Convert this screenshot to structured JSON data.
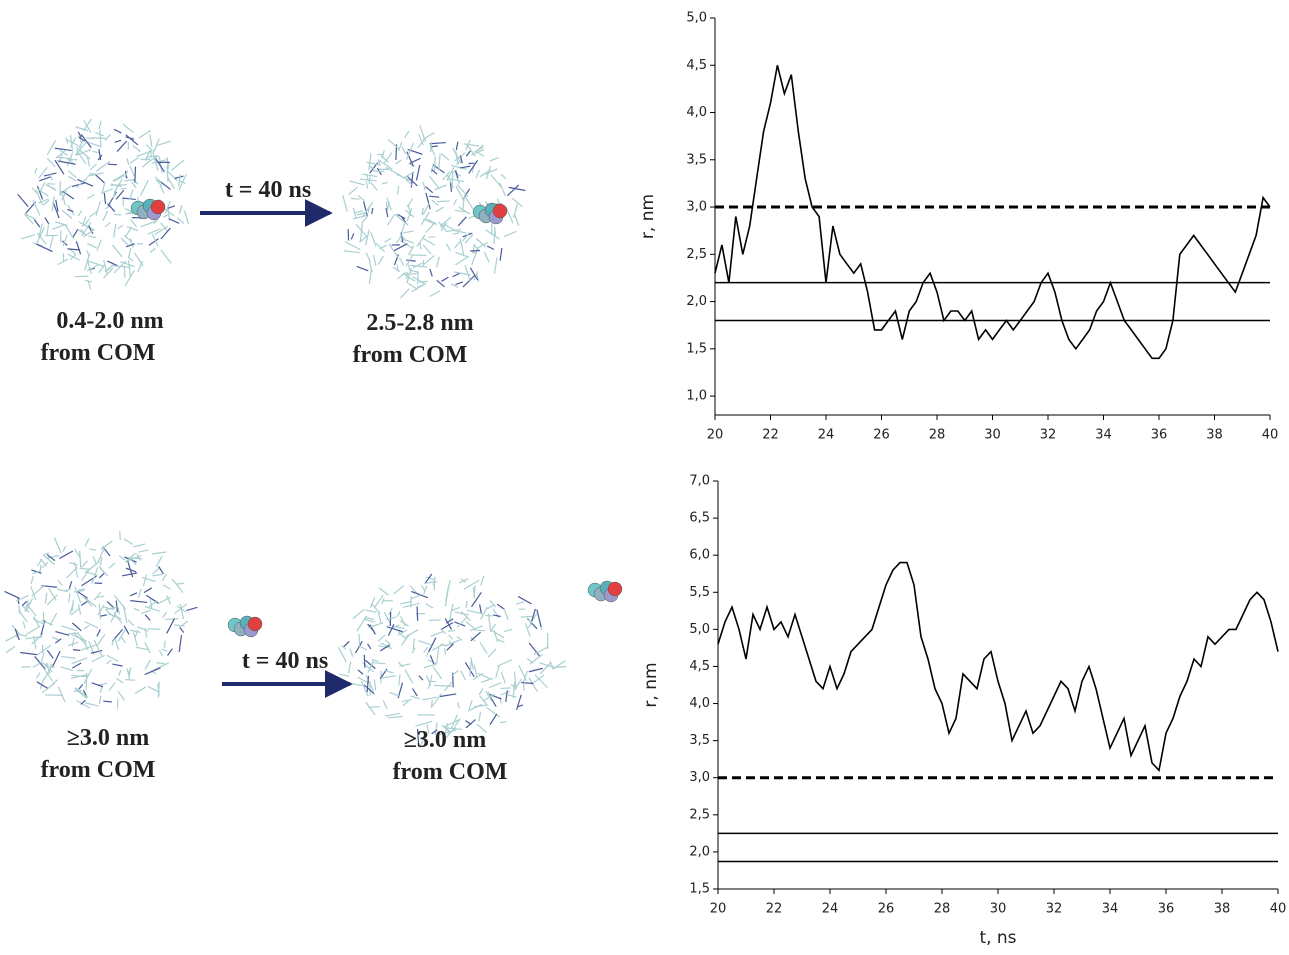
{
  "schemes": [
    {
      "arrow_label": "t = 40 ns",
      "start_label": [
        "0.4-2.0 nm",
        "from COM"
      ],
      "end_label": [
        "2.5-2.8 nm",
        "from COM"
      ]
    },
    {
      "arrow_label": "t = 40 ns",
      "start_label": [
        "≥3.0 nm",
        "from COM"
      ],
      "end_label": [
        "≥3.0 nm",
        "from COM"
      ]
    }
  ],
  "chart_data": [
    {
      "type": "line",
      "ylabel": "r, nm",
      "color": "#000000",
      "x": [
        20,
        20.25,
        20.5,
        20.75,
        21,
        21.25,
        21.5,
        21.75,
        22,
        22.25,
        22.5,
        22.75,
        23,
        23.25,
        23.5,
        23.75,
        24,
        24.25,
        24.5,
        24.75,
        25,
        25.25,
        25.5,
        25.75,
        26,
        26.25,
        26.5,
        26.75,
        27,
        27.25,
        27.5,
        27.75,
        28,
        28.25,
        28.5,
        28.75,
        29,
        29.25,
        29.5,
        29.75,
        30,
        30.25,
        30.5,
        30.75,
        31,
        31.25,
        31.5,
        31.75,
        32,
        32.25,
        32.5,
        32.75,
        33,
        33.25,
        33.5,
        33.75,
        34,
        34.25,
        34.5,
        34.75,
        35,
        35.25,
        35.5,
        35.75,
        36,
        36.25,
        36.5,
        36.75,
        37,
        37.25,
        37.5,
        37.75,
        38,
        38.25,
        38.5,
        38.75,
        39,
        39.25,
        39.5,
        39.75,
        40
      ],
      "values": [
        2.3,
        2.6,
        2.2,
        2.9,
        2.5,
        2.8,
        3.3,
        3.8,
        4.1,
        4.5,
        4.2,
        4.4,
        3.8,
        3.3,
        3.0,
        2.9,
        2.2,
        2.8,
        2.5,
        2.4,
        2.3,
        2.4,
        2.1,
        1.7,
        1.7,
        1.8,
        1.9,
        1.6,
        1.9,
        2.0,
        2.2,
        2.3,
        2.1,
        1.8,
        1.9,
        1.9,
        1.8,
        1.9,
        1.6,
        1.7,
        1.6,
        1.7,
        1.8,
        1.7,
        1.8,
        1.9,
        2.0,
        2.2,
        2.3,
        2.1,
        1.8,
        1.6,
        1.5,
        1.6,
        1.7,
        1.9,
        2.0,
        2.2,
        2.0,
        1.8,
        1.7,
        1.6,
        1.5,
        1.4,
        1.4,
        1.5,
        1.8,
        2.5,
        2.6,
        2.7,
        2.6,
        2.5,
        2.4,
        2.3,
        2.2,
        2.1,
        2.3,
        2.5,
        2.7,
        3.1,
        3.0
      ],
      "reference_lines": [
        {
          "value": 3.0,
          "style": "dashed"
        },
        {
          "value": 2.2,
          "style": "solid"
        },
        {
          "value": 1.8,
          "style": "solid"
        }
      ],
      "xlim": [
        20,
        40
      ],
      "ylim": [
        0.8,
        5.0
      ],
      "xticks": [
        20,
        22,
        24,
        26,
        28,
        30,
        32,
        34,
        36,
        38,
        40
      ],
      "yticks": [
        {
          "value": 1.0,
          "label": "1,0"
        },
        {
          "value": 1.5,
          "label": "1,5"
        },
        {
          "value": 2.0,
          "label": "2,0"
        },
        {
          "value": 2.5,
          "label": "2,5"
        },
        {
          "value": 3.0,
          "label": "3,0"
        },
        {
          "value": 3.5,
          "label": "3,5"
        },
        {
          "value": 4.0,
          "label": "4,0"
        },
        {
          "value": 4.5,
          "label": "4,5"
        },
        {
          "value": 5.0,
          "label": "5,0"
        }
      ]
    },
    {
      "type": "line",
      "ylabel": "r, nm",
      "xlabel": "t, ns",
      "color": "#000000",
      "x": [
        20,
        20.25,
        20.5,
        20.75,
        21,
        21.25,
        21.5,
        21.75,
        22,
        22.25,
        22.5,
        22.75,
        23,
        23.25,
        23.5,
        23.75,
        24,
        24.25,
        24.5,
        24.75,
        25,
        25.25,
        25.5,
        25.75,
        26,
        26.25,
        26.5,
        26.75,
        27,
        27.25,
        27.5,
        27.75,
        28,
        28.25,
        28.5,
        28.75,
        29,
        29.25,
        29.5,
        29.75,
        30,
        30.25,
        30.5,
        30.75,
        31,
        31.25,
        31.5,
        31.75,
        32,
        32.25,
        32.5,
        32.75,
        33,
        33.25,
        33.5,
        33.75,
        34,
        34.25,
        34.5,
        34.75,
        35,
        35.25,
        35.5,
        35.75,
        36,
        36.25,
        36.5,
        36.75,
        37,
        37.25,
        37.5,
        37.75,
        38,
        38.25,
        38.5,
        38.75,
        39,
        39.25,
        39.5,
        39.75,
        40
      ],
      "values": [
        4.8,
        5.1,
        5.3,
        5.0,
        4.6,
        5.2,
        5.0,
        5.3,
        5.0,
        5.1,
        4.9,
        5.2,
        4.9,
        4.6,
        4.3,
        4.2,
        4.5,
        4.2,
        4.4,
        4.7,
        4.8,
        4.9,
        5.0,
        5.3,
        5.6,
        5.8,
        5.9,
        5.9,
        5.6,
        4.9,
        4.6,
        4.2,
        4.0,
        3.6,
        3.8,
        4.4,
        4.3,
        4.2,
        4.6,
        4.7,
        4.3,
        4.0,
        3.5,
        3.7,
        3.9,
        3.6,
        3.7,
        3.9,
        4.1,
        4.3,
        4.2,
        3.9,
        4.3,
        4.5,
        4.2,
        3.8,
        3.4,
        3.6,
        3.8,
        3.3,
        3.5,
        3.7,
        3.2,
        3.1,
        3.6,
        3.8,
        4.1,
        4.3,
        4.6,
        4.5,
        4.9,
        4.8,
        4.9,
        5.0,
        5.0,
        5.2,
        5.4,
        5.5,
        5.4,
        5.1,
        4.7
      ],
      "reference_lines": [
        {
          "value": 3.0,
          "style": "dashed"
        },
        {
          "value": 2.25,
          "style": "solid"
        },
        {
          "value": 1.87,
          "style": "solid"
        }
      ],
      "xlim": [
        20,
        40
      ],
      "ylim": [
        1.5,
        7.0
      ],
      "xticks": [
        20,
        22,
        24,
        26,
        28,
        30,
        32,
        34,
        36,
        38,
        40
      ],
      "yticks": [
        {
          "value": 1.5,
          "label": "1,5"
        },
        {
          "value": 2.0,
          "label": "2,0"
        },
        {
          "value": 2.5,
          "label": "2,5"
        },
        {
          "value": 3.0,
          "label": "3,0"
        },
        {
          "value": 3.5,
          "label": "3,5"
        },
        {
          "value": 4.0,
          "label": "4,0"
        },
        {
          "value": 4.5,
          "label": "4,5"
        },
        {
          "value": 5.0,
          "label": "5,0"
        },
        {
          "value": 5.5,
          "label": "5,5"
        },
        {
          "value": 6.0,
          "label": "6,0"
        },
        {
          "value": 6.5,
          "label": "6,5"
        },
        {
          "value": 7.0,
          "label": "7,0"
        }
      ]
    }
  ]
}
